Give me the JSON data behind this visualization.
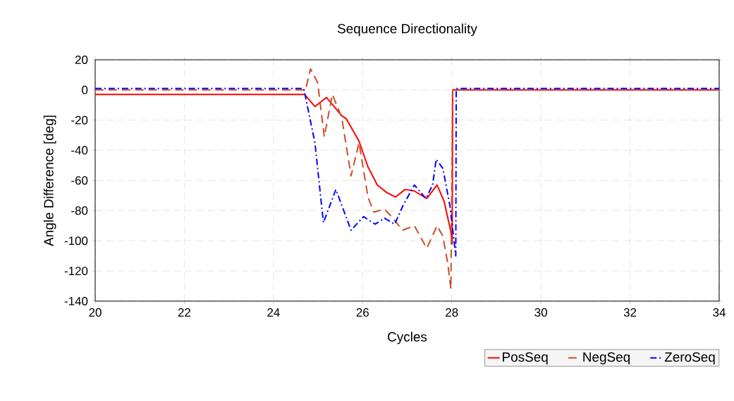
{
  "chart_data": {
    "type": "line",
    "title": "Sequence Directionality",
    "xlabel": "Cycles",
    "ylabel": "Angle Difference [deg]",
    "xlim": [
      20,
      34
    ],
    "ylim": [
      -140,
      20
    ],
    "xticks": [
      20,
      22,
      24,
      26,
      28,
      30,
      32,
      34
    ],
    "yticks": [
      -140,
      -120,
      -100,
      -80,
      -60,
      -40,
      -20,
      0,
      20
    ],
    "grid": true,
    "legend": "bottom right",
    "marker": "none",
    "series": [
      {
        "name": "PosSeq",
        "color": "#ff0000",
        "line_style": "solid",
        "x": [
          20,
          24.7,
          24.93,
          25.19,
          25.53,
          25.63,
          25.92,
          26.12,
          26.33,
          26.54,
          26.74,
          26.95,
          27.16,
          27.44,
          27.67,
          27.83,
          27.98,
          28.01,
          28.02,
          34
        ],
        "values": [
          -3,
          -3,
          -11,
          -5,
          -17,
          -19,
          -34,
          -51,
          -63,
          -68,
          -71,
          -66,
          -67,
          -72,
          -63,
          -74,
          -94,
          -102,
          0,
          0
        ]
      },
      {
        "name": "NegSeq",
        "color": "#c8502a",
        "line_style": "dashed",
        "x": [
          20,
          24.72,
          24.83,
          24.99,
          25.14,
          25.32,
          25.53,
          25.74,
          25.92,
          26.12,
          26.25,
          26.49,
          26.65,
          26.9,
          27.16,
          27.44,
          27.67,
          27.8,
          27.91,
          27.98,
          28.02,
          34
        ],
        "values": [
          0,
          0,
          14,
          5,
          -31,
          -3,
          -18,
          -57,
          -35,
          -71,
          -81,
          -79,
          -84,
          -93,
          -90,
          -105,
          -90,
          -97,
          -115,
          -132,
          0,
          0
        ]
      },
      {
        "name": "ZeroSeq",
        "color": "#0000ff",
        "line_style": "dashdot",
        "x": [
          20,
          24.68,
          24.93,
          25.12,
          25.4,
          25.74,
          26.02,
          26.28,
          26.49,
          26.72,
          26.9,
          27.16,
          27.42,
          27.57,
          27.65,
          27.8,
          27.96,
          28.09,
          28.1,
          34
        ],
        "values": [
          1,
          1,
          -35,
          -88,
          -66,
          -93,
          -84,
          -89,
          -85,
          -89,
          -77,
          -63,
          -72,
          -63,
          -46,
          -52,
          -77,
          -110,
          1,
          1
        ]
      }
    ]
  }
}
